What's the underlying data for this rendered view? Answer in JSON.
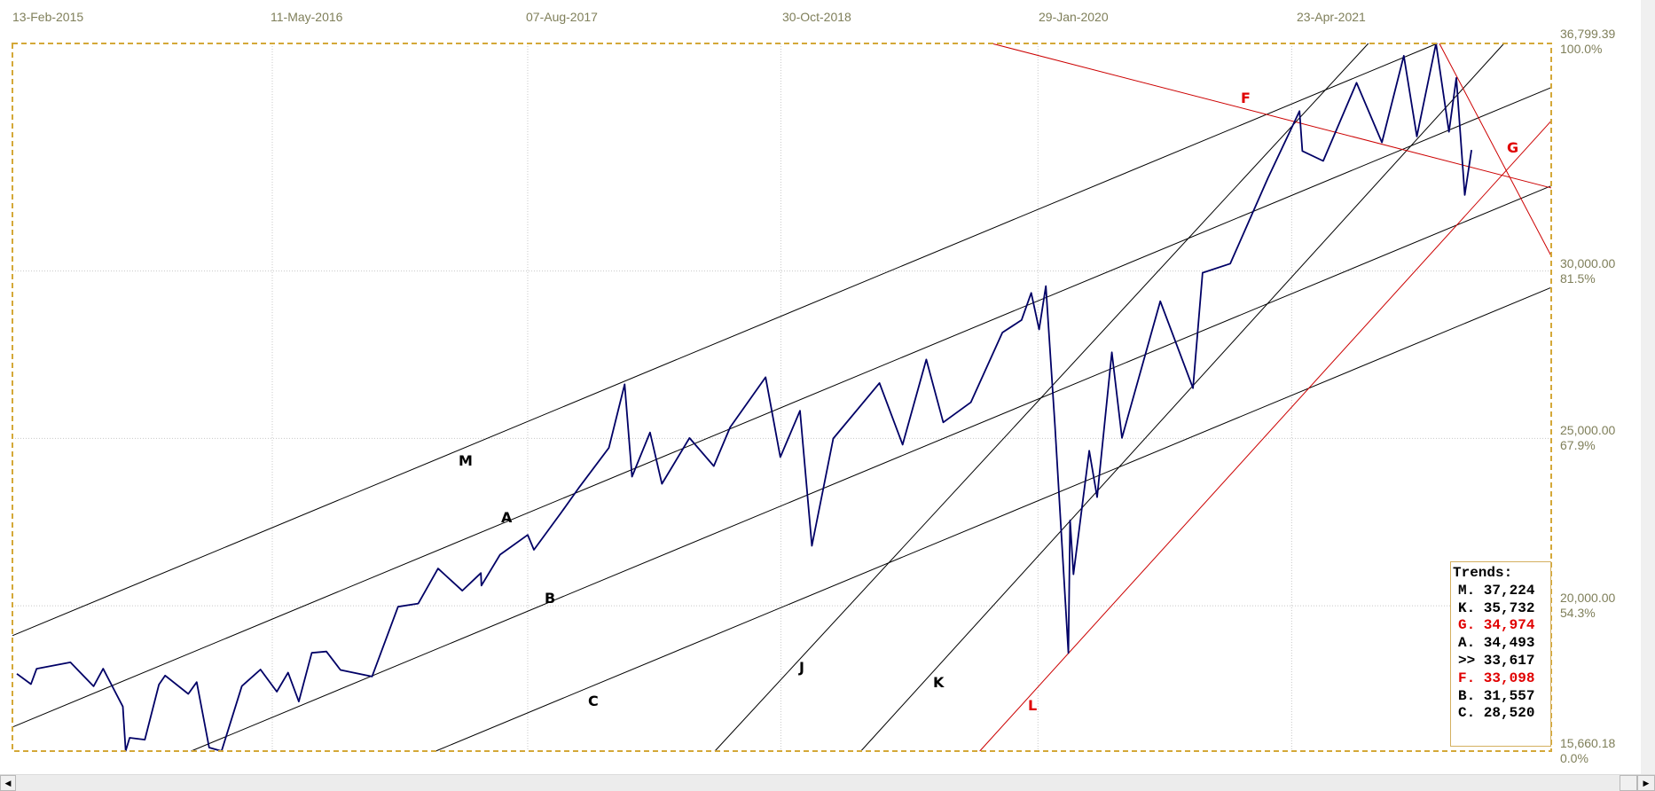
{
  "chart_data": {
    "type": "line",
    "x_axis": {
      "tick_labels": [
        "13-Feb-2015",
        "11-May-2016",
        "07-Aug-2017",
        "30-Oct-2018",
        "29-Jan-2020",
        "23-Apr-2021"
      ],
      "tick_dates": [
        "2015-02-13",
        "2016-05-11",
        "2017-08-07",
        "2018-10-30",
        "2020-01-29",
        "2021-04-23"
      ],
      "range": [
        "2015-02-06",
        "2022-07-28"
      ],
      "position": "top"
    },
    "y_axis": {
      "range": [
        15660.18,
        36799.39
      ],
      "position": "right",
      "ticks": [
        {
          "value": 36799.39,
          "label": "36,799.39",
          "pct": "100.0%"
        },
        {
          "value": 30000,
          "label": "30,000.00",
          "pct": "81.5%"
        },
        {
          "value": 25000,
          "label": "25,000.00",
          "pct": "67.9%"
        },
        {
          "value": 20000,
          "label": "20,000.00",
          "pct": "54.3%"
        },
        {
          "value": 15660.18,
          "label": "15,660.18",
          "pct": "0.0%"
        }
      ]
    },
    "grid": true,
    "colors": {
      "price": "#000066",
      "trend_black": "#000000",
      "trend_red": "#cc0000",
      "border": "#d4a838",
      "axis_text": "#7f7f5a"
    },
    "series": [
      {
        "points": [
          [
            "2015-02-13",
            17970
          ],
          [
            "2015-03-10",
            17660
          ],
          [
            "2015-03-20",
            18120
          ],
          [
            "2015-05-19",
            18312
          ],
          [
            "2015-06-29",
            17596
          ],
          [
            "2015-07-16",
            18120
          ],
          [
            "2015-08-20",
            16990
          ],
          [
            "2015-08-25",
            15666
          ],
          [
            "2015-09-01",
            16058
          ],
          [
            "2015-09-28",
            16001
          ],
          [
            "2015-10-23",
            17646
          ],
          [
            "2015-11-03",
            17918
          ],
          [
            "2015-12-14",
            17368
          ],
          [
            "2015-12-29",
            17720
          ],
          [
            "2016-01-20",
            15766
          ],
          [
            "2016-02-11",
            15660
          ],
          [
            "2016-03-18",
            17602
          ],
          [
            "2016-04-20",
            18096
          ],
          [
            "2016-05-19",
            17435
          ],
          [
            "2016-06-08",
            18005
          ],
          [
            "2016-06-27",
            17140
          ],
          [
            "2016-07-20",
            18595
          ],
          [
            "2016-08-15",
            18636
          ],
          [
            "2016-09-09",
            18085
          ],
          [
            "2016-11-04",
            17888
          ],
          [
            "2016-12-20",
            19974
          ],
          [
            "2017-01-25",
            20068
          ],
          [
            "2017-03-01",
            21115
          ],
          [
            "2017-04-13",
            20453
          ],
          [
            "2017-05-16",
            20979
          ],
          [
            "2017-05-17",
            20606
          ],
          [
            "2017-06-19",
            21528
          ],
          [
            "2017-08-07",
            22118
          ],
          [
            "2017-08-18",
            21674
          ],
          [
            "2017-10-05",
            22775
          ],
          [
            "2017-11-07",
            23557
          ],
          [
            "2017-12-29",
            24719
          ],
          [
            "2018-01-26",
            26616
          ],
          [
            "2018-02-08",
            23860
          ],
          [
            "2018-03-12",
            25178
          ],
          [
            "2018-04-02",
            23644
          ],
          [
            "2018-05-21",
            25013
          ],
          [
            "2018-07-03",
            24174
          ],
          [
            "2018-08-01",
            25333
          ],
          [
            "2018-10-03",
            26828
          ],
          [
            "2018-10-29",
            24442
          ],
          [
            "2018-12-03",
            25826
          ],
          [
            "2018-12-24",
            21792
          ],
          [
            "2019-01-31",
            24999
          ],
          [
            "2019-04-23",
            26656
          ],
          [
            "2019-06-03",
            24815
          ],
          [
            "2019-07-15",
            27359
          ],
          [
            "2019-08-14",
            25479
          ],
          [
            "2019-10-02",
            26078
          ],
          [
            "2019-11-27",
            28164
          ],
          [
            "2019-12-31",
            28538
          ],
          [
            "2020-01-17",
            29348
          ],
          [
            "2020-01-31",
            28256
          ],
          [
            "2020-02-12",
            29551
          ],
          [
            "2020-02-28",
            25409
          ],
          [
            "2020-03-23",
            18591
          ],
          [
            "2020-03-26",
            22552
          ],
          [
            "2020-04-01",
            20943
          ],
          [
            "2020-04-29",
            24633
          ],
          [
            "2020-05-13",
            23247
          ],
          [
            "2020-06-08",
            27572
          ],
          [
            "2020-06-26",
            25016
          ],
          [
            "2020-09-02",
            29100
          ],
          [
            "2020-10-30",
            26502
          ],
          [
            "2020-11-16",
            29950
          ],
          [
            "2021-01-04",
            30223
          ],
          [
            "2021-03-12",
            32779
          ],
          [
            "2021-05-07",
            34778
          ],
          [
            "2021-05-12",
            33587
          ],
          [
            "2021-06-18",
            33290
          ],
          [
            "2021-08-16",
            35625
          ],
          [
            "2021-09-30",
            33844
          ],
          [
            "2021-11-08",
            36432
          ],
          [
            "2021-12-01",
            34022
          ],
          [
            "2022-01-04",
            36799
          ],
          [
            "2022-01-27",
            34160
          ],
          [
            "2022-02-09",
            35768
          ],
          [
            "2022-02-24",
            32272
          ],
          [
            "2022-03-08",
            33617
          ]
        ]
      }
    ],
    "trend_lines": [
      {
        "label": "M",
        "color": "black",
        "points": [
          [
            "2015-02-13",
            19164
          ],
          [
            "2022-03-08",
            37224
          ]
        ]
      },
      {
        "label": "A",
        "color": "black",
        "points": [
          [
            "2015-02-13",
            16433
          ],
          [
            "2022-03-08",
            34493
          ]
        ]
      },
      {
        "label": "B",
        "color": "black",
        "points": [
          [
            "2015-02-13",
            13497
          ],
          [
            "2022-03-08",
            31557
          ]
        ]
      },
      {
        "label": "C",
        "color": "black",
        "points": [
          [
            "2015-02-13",
            10460
          ],
          [
            "2022-03-08",
            28520
          ]
        ]
      },
      {
        "label": "J",
        "color": "black",
        "points": [
          [
            "2018-07-05",
            15660
          ],
          [
            "2021-09-06",
            36800
          ]
        ]
      },
      {
        "label": "K",
        "color": "black",
        "points": [
          [
            "2019-03-21",
            15660
          ],
          [
            "2022-03-08",
            35732
          ]
        ]
      },
      {
        "label": "L",
        "color": "red",
        "points": [
          [
            "2020-03-23",
            18580
          ],
          [
            "2022-03-08",
            31860
          ]
        ]
      },
      {
        "label": "F",
        "color": "red",
        "points": [
          [
            "2019-11-08",
            36799
          ],
          [
            "2022-03-08",
            33098
          ]
        ]
      },
      {
        "label": "G",
        "color": "red",
        "points": [
          [
            "2022-01-10",
            36799
          ],
          [
            "2022-03-08",
            34974
          ]
        ]
      }
    ],
    "legend": {
      "title": "Trends:",
      "placement": "bottom-right",
      "rows": [
        {
          "text": "M. 37,224",
          "color": "black"
        },
        {
          "text": "K. 35,732",
          "color": "black"
        },
        {
          "text": "G. 34,974",
          "color": "red"
        },
        {
          "text": "A. 34,493",
          "color": "black"
        },
        {
          "text": ">> 33,617",
          "color": "black"
        },
        {
          "text": "F. 33,098",
          "color": "red"
        },
        {
          "text": "B. 31,557",
          "color": "black"
        },
        {
          "text": "C. 28,520",
          "color": "black"
        }
      ]
    }
  },
  "scrollbar": {
    "left_icon": "arrow-left-icon",
    "right_icon": "arrow-right-icon"
  }
}
